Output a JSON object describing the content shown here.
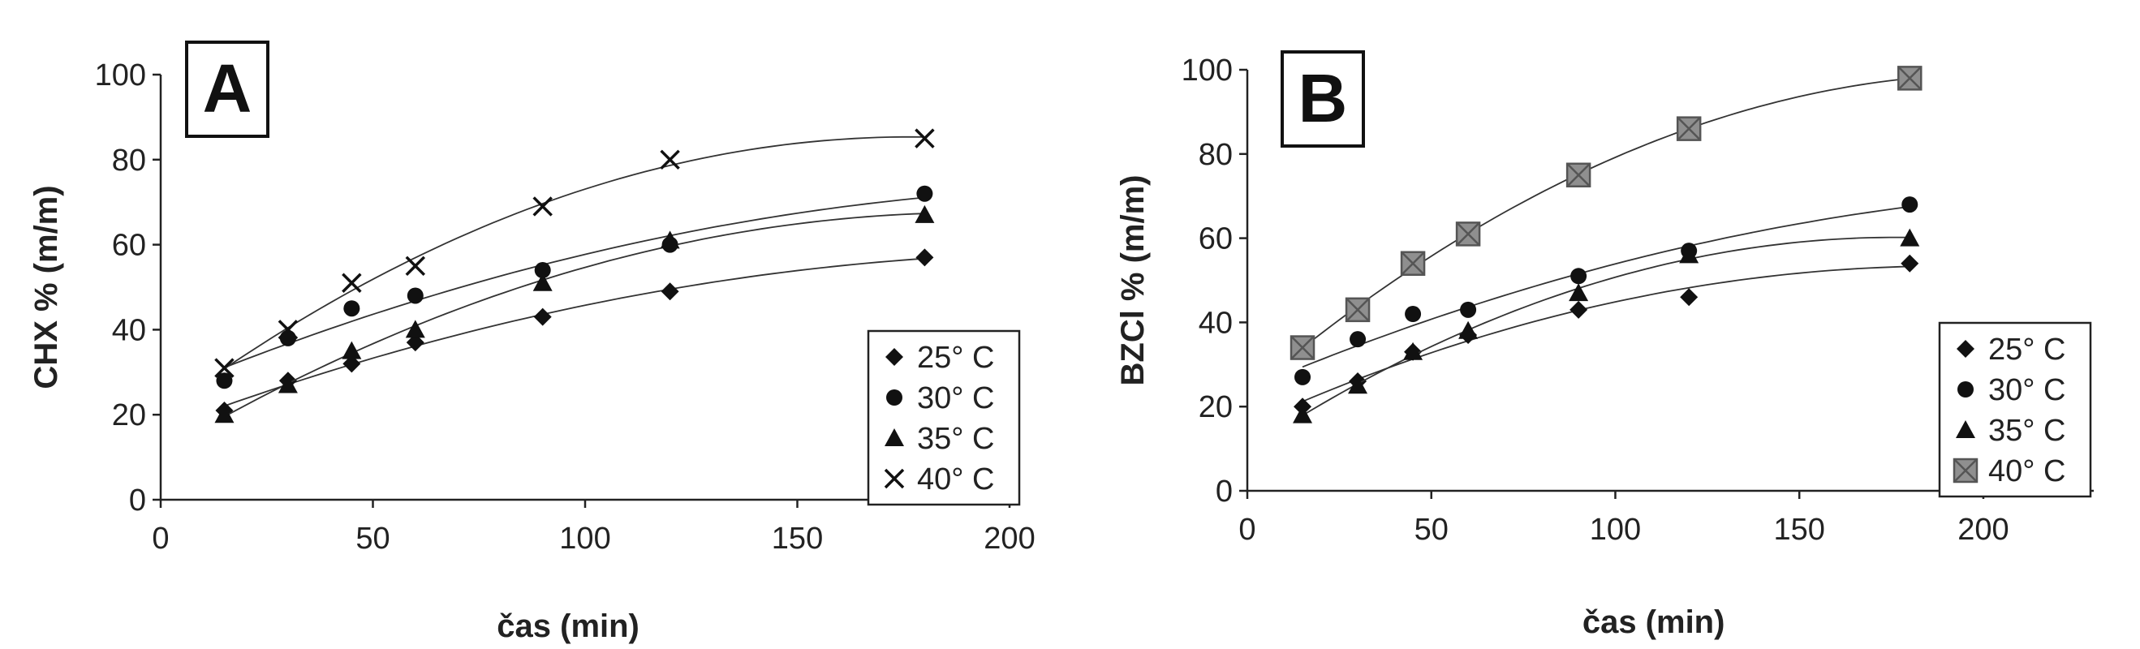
{
  "chart_data": [
    {
      "type": "scatter",
      "panel_label": "A",
      "ylabel": "CHX % (m/m)",
      "xlabel": "čas (min)",
      "xlim": [
        0,
        200
      ],
      "ylim": [
        0,
        100
      ],
      "xticks": [
        0,
        50,
        100,
        150,
        200
      ],
      "yticks": [
        0,
        20,
        40,
        60,
        80,
        100
      ],
      "grid": false,
      "trendlines": true,
      "legend_position": "right",
      "series": [
        {
          "name": "25° C",
          "marker": "diamond",
          "x": [
            15,
            30,
            45,
            60,
            90,
            120,
            180
          ],
          "y": [
            21,
            28,
            32,
            37,
            43,
            49,
            57
          ]
        },
        {
          "name": "30° C",
          "marker": "circle",
          "x": [
            15,
            30,
            45,
            60,
            90,
            120,
            180
          ],
          "y": [
            28,
            38,
            45,
            48,
            54,
            60,
            72
          ]
        },
        {
          "name": "35° C",
          "marker": "triangle",
          "x": [
            15,
            30,
            45,
            60,
            90,
            120,
            180
          ],
          "y": [
            20,
            27,
            35,
            40,
            51,
            61,
            67
          ]
        },
        {
          "name": "40° C",
          "marker": "x",
          "x": [
            15,
            30,
            45,
            60,
            90,
            120,
            180
          ],
          "y": [
            31,
            40,
            51,
            55,
            69,
            80,
            85
          ]
        }
      ]
    },
    {
      "type": "scatter",
      "panel_label": "B",
      "ylabel": "BZCl % (m/m)",
      "xlabel": "čas (min)",
      "xlim": [
        0,
        230
      ],
      "ylim": [
        0,
        100
      ],
      "xticks": [
        0,
        50,
        100,
        150,
        200
      ],
      "yticks": [
        0,
        20,
        40,
        60,
        80,
        100
      ],
      "grid": false,
      "trendlines": true,
      "legend_position": "right",
      "series": [
        {
          "name": "25° C",
          "marker": "diamond",
          "x": [
            15,
            30,
            45,
            60,
            90,
            120,
            180
          ],
          "y": [
            20,
            26,
            33,
            37,
            43,
            46,
            54
          ]
        },
        {
          "name": "30° C",
          "marker": "circle",
          "x": [
            15,
            30,
            45,
            60,
            90,
            120,
            180
          ],
          "y": [
            27,
            36,
            42,
            43,
            51,
            57,
            68
          ]
        },
        {
          "name": "35° C",
          "marker": "triangle",
          "x": [
            15,
            30,
            45,
            60,
            90,
            120,
            180
          ],
          "y": [
            18,
            25,
            33,
            38,
            47,
            56,
            60
          ]
        },
        {
          "name": "40° C",
          "marker": "square",
          "x": [
            15,
            30,
            45,
            60,
            90,
            120,
            180
          ],
          "y": [
            34,
            43,
            54,
            61,
            75,
            86,
            98
          ]
        }
      ]
    }
  ]
}
